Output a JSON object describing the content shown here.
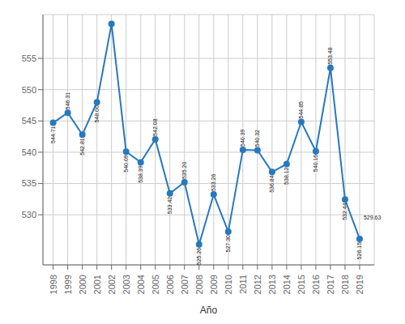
{
  "chart_data": {
    "type": "line",
    "x": [
      1998,
      1999,
      2000,
      2001,
      2002,
      2003,
      2004,
      2005,
      2006,
      2007,
      2008,
      2009,
      2010,
      2011,
      2012,
      2013,
      2014,
      2015,
      2016,
      2017,
      2018,
      2019
    ],
    "values": [
      544.71,
      546.31,
      542.81,
      548.0,
      560.5,
      540.09,
      538.39,
      542.08,
      533.42,
      535.2,
      525.26,
      533.26,
      527.3,
      540.39,
      540.32,
      536.84,
      538.12,
      544.85,
      540.16,
      553.48,
      532.44,
      526.15
    ],
    "value_labels": [
      "544.71",
      "546.31",
      "542.81",
      "548.00",
      null,
      "540.09",
      "538.39",
      "542.08",
      "533.42",
      "535.20",
      "525.26",
      "533.26",
      "527.30",
      "540.39",
      "540.32",
      "536.84",
      "538.12",
      "544.85",
      "540.16",
      "553.48",
      "532.44",
      "526.15"
    ],
    "data_labels": true,
    "color": "#2878bd",
    "marker": "circle",
    "xlabel": "Año",
    "xlim": [
      1997.3,
      2020.0
    ],
    "xticks": [
      1998,
      1999,
      2000,
      2001,
      2002,
      2003,
      2004,
      2005,
      2006,
      2007,
      2008,
      2009,
      2010,
      2011,
      2012,
      2013,
      2014,
      2015,
      2016,
      2017,
      2018,
      2019
    ],
    "ylim": [
      522,
      562
    ],
    "yticks": [
      530,
      535,
      540,
      545,
      550,
      555
    ],
    "grid": true,
    "annotations": [
      {
        "text": "529.63",
        "x": 2019,
        "y": 529.63
      }
    ]
  }
}
